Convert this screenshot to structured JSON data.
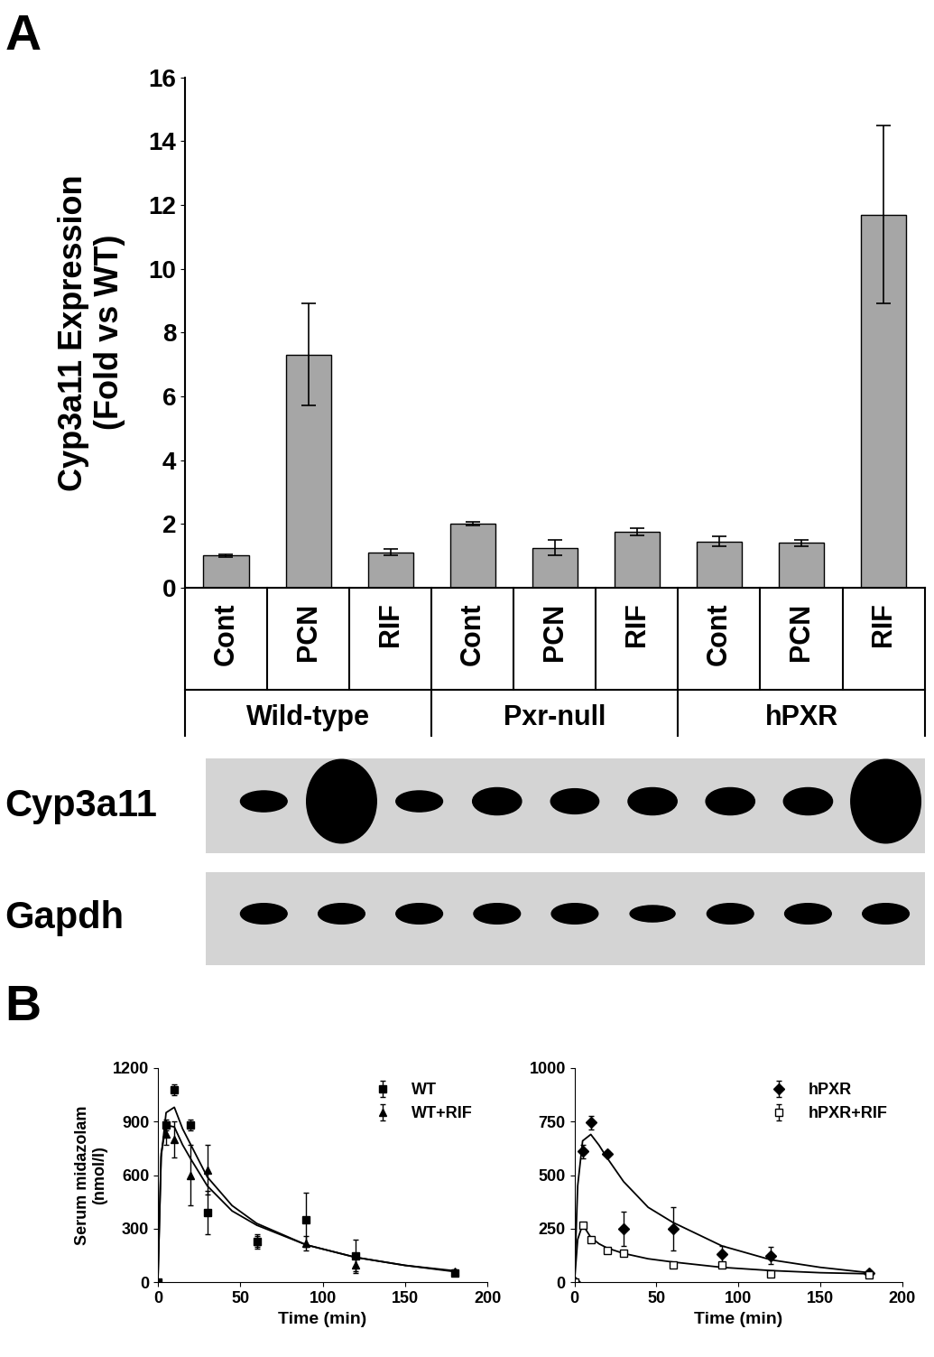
{
  "panel_labels": [
    "A",
    "B"
  ],
  "chart_data": [
    {
      "type": "bar",
      "y_label": "Cyp3a11 Expression\n(Fold vs WT)",
      "groups": [
        {
          "name": "Wild-type",
          "categories": [
            "Cont",
            "PCN",
            "RIF"
          ]
        },
        {
          "name": "Pxr-null",
          "categories": [
            "Cont",
            "PCN",
            "RIF"
          ]
        },
        {
          "name": "hPXR",
          "categories": [
            "Cont",
            "PCN",
            "RIF"
          ]
        }
      ],
      "values": [
        1.0,
        7.3,
        1.1,
        2.0,
        1.25,
        1.75,
        1.45,
        1.4,
        11.7
      ],
      "errors": [
        0.05,
        1.6,
        0.1,
        0.05,
        0.25,
        0.1,
        0.15,
        0.1,
        2.8
      ],
      "color": "#a6a6a6",
      "ylim": [
        0,
        16
      ],
      "yticks": [
        0,
        2,
        4,
        6,
        8,
        10,
        12,
        14,
        16
      ]
    },
    {
      "type": "scatter",
      "x_label": "Time (min)",
      "y_label": "Serum midazolam\n(nmol/l)",
      "xlim": [
        0,
        200
      ],
      "xticks": [
        0,
        50,
        100,
        150,
        200
      ],
      "ylim": [
        0,
        1200
      ],
      "yticks": [
        0,
        300,
        600,
        900,
        1200
      ],
      "legend": "upper right",
      "series": [
        {
          "name": "WT",
          "color": "#000000",
          "marker": "square",
          "x": [
            0,
            5,
            10,
            20,
            30,
            60,
            90,
            120,
            180
          ],
          "values": [
            0,
            880,
            1080,
            880,
            390,
            230,
            350,
            150,
            50
          ],
          "errors": [
            0,
            30,
            30,
            30,
            120,
            40,
            150,
            90,
            10
          ],
          "fit": {
            "x": [
              0,
              2,
              5,
              10,
              15,
              20,
              30,
              45,
              60,
              90,
              120,
              150,
              180
            ],
            "values": [
              0,
              700,
              950,
              980,
              860,
              770,
              590,
              430,
              330,
              210,
              140,
              95,
              60
            ]
          }
        },
        {
          "name": "WT+RIF",
          "color": "#000000",
          "marker": "triangle",
          "x": [
            0,
            5,
            10,
            20,
            30,
            60,
            90,
            120,
            180
          ],
          "values": [
            0,
            830,
            800,
            600,
            630,
            230,
            220,
            100,
            60
          ],
          "errors": [
            0,
            60,
            100,
            170,
            140,
            30,
            40,
            50,
            10
          ],
          "fit": {
            "x": [
              0,
              2,
              5,
              10,
              15,
              20,
              30,
              45,
              60,
              90,
              120,
              150,
              180
            ],
            "values": [
              0,
              720,
              880,
              870,
              770,
              690,
              540,
              400,
              320,
              210,
              140,
              95,
              65
            ]
          }
        }
      ]
    },
    {
      "type": "scatter",
      "x_label": "Time (min)",
      "xlim": [
        0,
        200
      ],
      "xticks": [
        0,
        50,
        100,
        150,
        200
      ],
      "ylim": [
        0,
        1000
      ],
      "yticks": [
        0,
        250,
        500,
        750,
        1000
      ],
      "legend": "upper right",
      "series": [
        {
          "name": "hPXR",
          "color": "#000000",
          "marker": "diamond",
          "x": [
            0,
            5,
            10,
            20,
            30,
            60,
            90,
            120,
            180
          ],
          "values": [
            0,
            610,
            745,
            600,
            250,
            250,
            130,
            125,
            45
          ],
          "errors": [
            0,
            30,
            30,
            10,
            80,
            100,
            40,
            40,
            10
          ],
          "fit": {
            "x": [
              0,
              2,
              5,
              10,
              15,
              20,
              30,
              45,
              60,
              90,
              120,
              150,
              180
            ],
            "values": [
              0,
              450,
              660,
              690,
              640,
              580,
              470,
              350,
              280,
              170,
              105,
              70,
              45
            ]
          }
        },
        {
          "name": "hPXR+RIF",
          "color": "#000000",
          "marker": "open square",
          "x": [
            0,
            5,
            10,
            20,
            30,
            60,
            90,
            120,
            180
          ],
          "values": [
            0,
            265,
            200,
            150,
            135,
            80,
            80,
            40,
            35
          ],
          "errors": [
            0,
            10,
            10,
            10,
            10,
            5,
            10,
            5,
            5
          ],
          "fit": {
            "x": [
              0,
              2,
              5,
              10,
              15,
              20,
              30,
              45,
              60,
              90,
              120,
              150,
              180
            ],
            "values": [
              0,
              200,
              270,
              210,
              180,
              160,
              135,
              110,
              95,
              70,
              55,
              45,
              40
            ]
          }
        }
      ]
    }
  ],
  "blot": {
    "rows": [
      {
        "label": "Cyp3a11",
        "band_intensity": [
          1,
          4,
          1,
          1.3,
          1.2,
          1.3,
          1.3,
          1.3,
          4
        ]
      },
      {
        "label": "Gapdh",
        "band_intensity": [
          1,
          1,
          1,
          1,
          1,
          0.8,
          1,
          1,
          1
        ]
      }
    ]
  }
}
